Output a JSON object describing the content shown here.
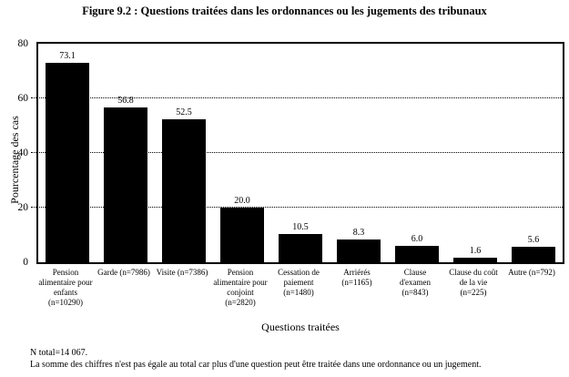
{
  "chart_data": {
    "type": "bar",
    "title": "Figure 9.2 : Questions traitées dans les ordonnances ou les jugements des tribunaux",
    "xlabel": "Questions traitées",
    "ylabel": "Pourcentage des cas",
    "ylim": [
      0,
      80
    ],
    "yticks": [
      0,
      20,
      40,
      60,
      80
    ],
    "gridlines": [
      20,
      40,
      60
    ],
    "grid_style": "dotted",
    "bar_color": "#000000",
    "legend": "none",
    "categories": [
      "Pension alimentaire pour enfants (n=10290)",
      "Garde (n=7986)",
      "Visite (n=7386)",
      "Pension alimentaire pour conjoint (n=2820)",
      "Cessation de paiement (n=1480)",
      "Arriérés (n=1165)",
      "Clause d'examen (n=843)",
      "Clause du coût de la vie (n=225)",
      "Autre (n=792)"
    ],
    "category_lines": [
      [
        "Pension",
        "alimentaire pour",
        "enfants",
        "(n=10290)"
      ],
      [
        "Garde (n=7986)"
      ],
      [
        "Visite (n=7386)"
      ],
      [
        "Pension",
        "alimentaire pour",
        "conjoint",
        "(n=2820)"
      ],
      [
        "Cessation de",
        "paiement",
        "(n=1480)"
      ],
      [
        "Arriérés",
        "(n=1165)"
      ],
      [
        "Clause",
        "d'examen",
        "(n=843)"
      ],
      [
        "Clause du coût",
        "de la vie",
        "(n=225)"
      ],
      [
        "Autre (n=792)"
      ]
    ],
    "values": [
      73.1,
      56.8,
      52.5,
      20.0,
      10.5,
      8.3,
      6.0,
      1.6,
      5.6
    ],
    "value_labels": [
      "73.1",
      "56.8",
      "52.5",
      "20.0",
      "10.5",
      "8.3",
      "6.0",
      "1.6",
      "5.6"
    ]
  },
  "footnotes": [
    "N total=14 067.",
    "La somme des chiffres n'est pas égale au total car plus d'une question peut être traitée dans une ordonnance ou un jugement."
  ]
}
